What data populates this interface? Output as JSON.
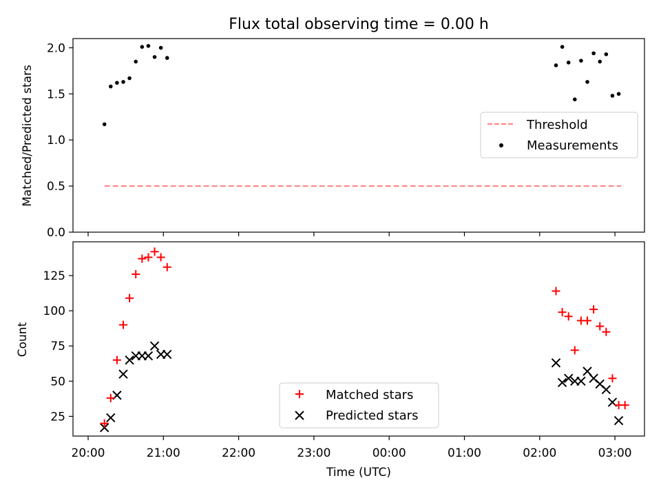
{
  "title": "Flux total observing time = 0.00 h",
  "chart_data": [
    {
      "type": "scatter",
      "panel": "top",
      "ylabel": "Matched/Predicted stars",
      "xlabel": "",
      "ylim": [
        0,
        2.1
      ],
      "yticks": [
        0.0,
        0.5,
        1.0,
        1.5,
        2.0
      ],
      "ytick_labels": [
        "0.0",
        "0.5",
        "1.0",
        "1.5",
        "2.0"
      ],
      "legend_position": "center-right",
      "series": [
        {
          "name": "Threshold",
          "kind": "dashed-line",
          "color": "#ff7f7f",
          "x": [
            "20:13",
            "03:05"
          ],
          "y": [
            0.5,
            0.5
          ]
        },
        {
          "name": "Measurements",
          "kind": "dot",
          "color": "#000000",
          "x": [
            "20:13",
            "20:18",
            "20:23",
            "20:28",
            "20:33",
            "20:38",
            "20:43",
            "20:48",
            "20:53",
            "20:58",
            "21:03",
            "02:13",
            "02:18",
            "02:23",
            "02:28",
            "02:33",
            "02:38",
            "02:43",
            "02:48",
            "02:53",
            "02:58",
            "03:03"
          ],
          "y": [
            1.17,
            1.58,
            1.62,
            1.63,
            1.67,
            1.85,
            2.01,
            2.02,
            1.9,
            2.0,
            1.89,
            1.81,
            2.01,
            1.84,
            1.44,
            1.86,
            1.63,
            1.94,
            1.85,
            1.93,
            1.48,
            1.5
          ]
        }
      ]
    },
    {
      "type": "scatter",
      "panel": "bottom",
      "xlabel": "Time (UTC)",
      "ylabel": "Count",
      "ylim": [
        11,
        149
      ],
      "yticks": [
        25,
        50,
        75,
        100,
        125
      ],
      "ytick_labels": [
        "25",
        "50",
        "75",
        "100",
        "125"
      ],
      "xlim": [
        "20:06",
        "03:24"
      ],
      "xticks": [
        "20:00",
        "21:00",
        "22:00",
        "23:00",
        "00:00",
        "01:00",
        "02:00",
        "03:00"
      ],
      "xtick_labels": [
        "20:00",
        "21:00",
        "22:00",
        "23:00",
        "00:00",
        "01:00",
        "02:00",
        "03:00"
      ],
      "legend_position": "bottom-center",
      "series": [
        {
          "name": "Matched stars",
          "marker": "+",
          "color": "#ff0000",
          "x": [
            "20:13",
            "20:18",
            "20:23",
            "20:28",
            "20:33",
            "20:38",
            "20:43",
            "20:48",
            "20:53",
            "20:58",
            "21:03",
            "02:13",
            "02:18",
            "02:23",
            "02:28",
            "02:33",
            "02:38",
            "02:43",
            "02:48",
            "02:53",
            "02:58",
            "03:03",
            "03:08"
          ],
          "y": [
            20,
            38,
            65,
            90,
            109,
            126,
            137,
            138,
            142,
            138,
            131,
            114,
            99,
            96,
            72,
            93,
            93,
            101,
            89,
            85,
            52,
            33,
            33
          ]
        },
        {
          "name": "Predicted stars",
          "marker": "x",
          "color": "#000000",
          "x": [
            "20:13",
            "20:18",
            "20:23",
            "20:28",
            "20:33",
            "20:38",
            "20:43",
            "20:48",
            "20:53",
            "20:58",
            "21:03",
            "02:13",
            "02:18",
            "02:23",
            "02:28",
            "02:33",
            "02:38",
            "02:43",
            "02:48",
            "02:53",
            "02:58",
            "03:03"
          ],
          "y": [
            17,
            24,
            40,
            55,
            65,
            68,
            68,
            68,
            75,
            69,
            69,
            63,
            49,
            52,
            50,
            50,
            57,
            52,
            48,
            44,
            35,
            22
          ]
        }
      ]
    }
  ]
}
